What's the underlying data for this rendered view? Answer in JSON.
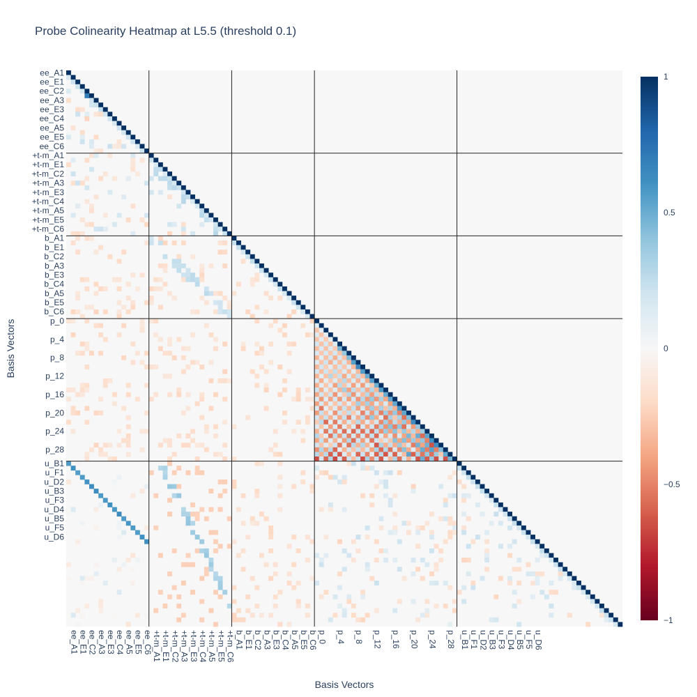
{
  "chart_data": {
    "type": "heatmap",
    "title": "Probe Colinearity Heatmap at L5.5 (threshold 0.1)",
    "xlabel": "Basis Vectors",
    "ylabel": "Basis Vectors",
    "zlim": [
      -1,
      1
    ],
    "colorscale": "RdBu",
    "colorbar_ticks": [
      {
        "value": 1,
        "label": "1"
      },
      {
        "value": 0.5,
        "label": "0.5"
      },
      {
        "value": 0,
        "label": "0"
      },
      {
        "value": -0.5,
        "label": "−0.5"
      },
      {
        "value": -1,
        "label": "−1"
      }
    ],
    "groups": [
      {
        "name": "ee",
        "size": 18,
        "tick_labels": [
          "ee_A1",
          "ee_E1",
          "ee_C2",
          "ee_A3",
          "ee_E3",
          "ee_C4",
          "ee_A5",
          "ee_E5",
          "ee_C6"
        ]
      },
      {
        "name": "+t-m",
        "size": 18,
        "tick_labels": [
          "+t-m_A1",
          "+t-m_E1",
          "+t-m_C2",
          "+t-m_A3",
          "+t-m_E3",
          "+t-m_C4",
          "+t-m_A5",
          "+t-m_E5",
          "+t-m_C6"
        ]
      },
      {
        "name": "b",
        "size": 18,
        "tick_labels": [
          "b_A1",
          "b_E1",
          "b_C2",
          "b_A3",
          "b_E3",
          "b_C4",
          "b_A5",
          "b_E5",
          "b_C6"
        ]
      },
      {
        "name": "p",
        "size": 31,
        "tick_labels": [
          "p_0",
          "p_4",
          "p_8",
          "p_12",
          "p_16",
          "p_20",
          "p_24",
          "p_28"
        ]
      },
      {
        "name": "u",
        "size": 36,
        "tick_labels": [
          "u_B1",
          "u_F1",
          "u_D2",
          "u_B3",
          "u_F3",
          "u_D4",
          "u_B5",
          "u_F5",
          "u_D6"
        ]
      }
    ],
    "diagonal_value": 1,
    "cells_below_threshold": "blank",
    "notable_values": [
      {
        "row": "ee_C4",
        "col": "ee_E3",
        "value": 0.7
      },
      {
        "row": "p block",
        "col": "p block",
        "value_range": [
          -0.8,
          0.6
        ],
        "pattern": "checkerboard of alternating positive and negative values"
      },
      {
        "row": "u block rows",
        "col": "ee block diagonal",
        "value": 0.6
      },
      {
        "row": "u block rows",
        "col": "+t-m block",
        "value_range": [
          -0.2,
          0.4
        ]
      }
    ]
  }
}
